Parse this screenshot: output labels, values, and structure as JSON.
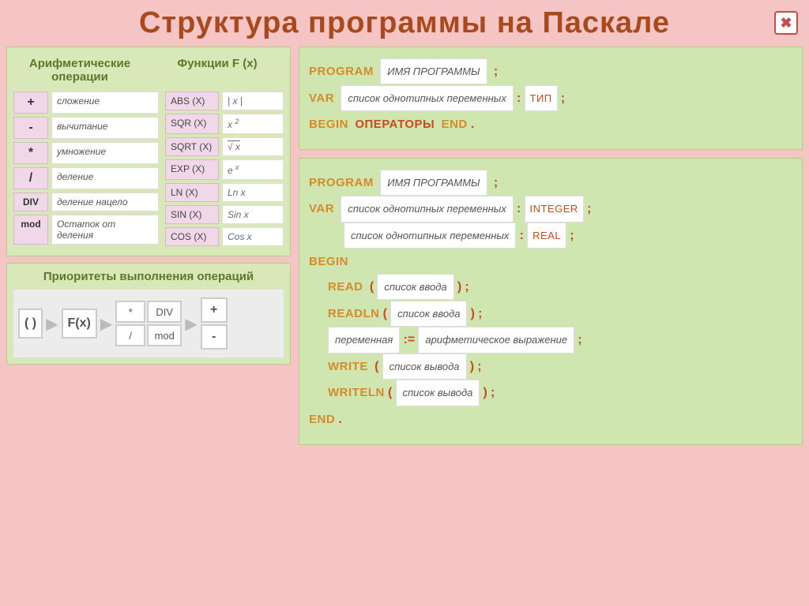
{
  "title": "Структура программы на Паскале",
  "headers": {
    "ops": "Арифметические операции",
    "fns": "Функции  F (x)",
    "prio": "Приоритеты выполнения операций"
  },
  "ops": [
    {
      "sym": "+",
      "desc": "сложение"
    },
    {
      "sym": "-",
      "desc": "вычитание"
    },
    {
      "sym": "*",
      "desc": "умножение"
    },
    {
      "sym": "/",
      "desc": "деление"
    },
    {
      "sym": "DIV",
      "desc": "деление нацело"
    },
    {
      "sym": "mod",
      "desc": "Остаток от деления"
    }
  ],
  "fns": [
    {
      "n": "ABS (X)",
      "m": "| x |"
    },
    {
      "n": "SQR (X)",
      "m": "x ²"
    },
    {
      "n": "SQRT (X)",
      "m": "√ x"
    },
    {
      "n": "EXP (X)",
      "m": "e ˣ"
    },
    {
      "n": "LN (X)",
      "m": "Ln x"
    },
    {
      "n": "SIN (X)",
      "m": "Sin x"
    },
    {
      "n": "COS (X)",
      "m": "Cos x"
    }
  ],
  "prio": {
    "p1": "( )",
    "p2": "F(x)",
    "g": [
      "*",
      "DIV",
      "/",
      "mod"
    ],
    "pm": [
      "+",
      "-"
    ]
  },
  "code1": {
    "program": "PROGRAM",
    "name": "ИМЯ ПРОГРАММЫ",
    "var": "VAR",
    "varlist": "список однотипных переменных",
    "type": "ТИП",
    "begin": "BEGIN",
    "ops": "ОПЕРАТОРЫ",
    "end": "END"
  },
  "code2": {
    "program": "PROGRAM",
    "name": "ИМЯ ПРОГРАММЫ",
    "var": "VAR",
    "varlist": "список однотипных переменных",
    "integer": "INTEGER",
    "real": "REAL",
    "begin": "BEGIN",
    "read": "READ",
    "readln": "READLN",
    "inlist": "список ввода",
    "assign_var": "переменная",
    "assign_op": ":=",
    "assign_expr": "арифметическое выражение",
    "write": "WRITE",
    "writeln": "WRITELN",
    "outlist": "список вывода",
    "end": "END"
  },
  "colors": {
    "bg": "#f5c4c4",
    "panel": "#d8e8b8",
    "hdr": "#5a7a2a",
    "kw": "#d68a2a",
    "punct": "#c94a1e",
    "pink": "#f0d8e8"
  }
}
